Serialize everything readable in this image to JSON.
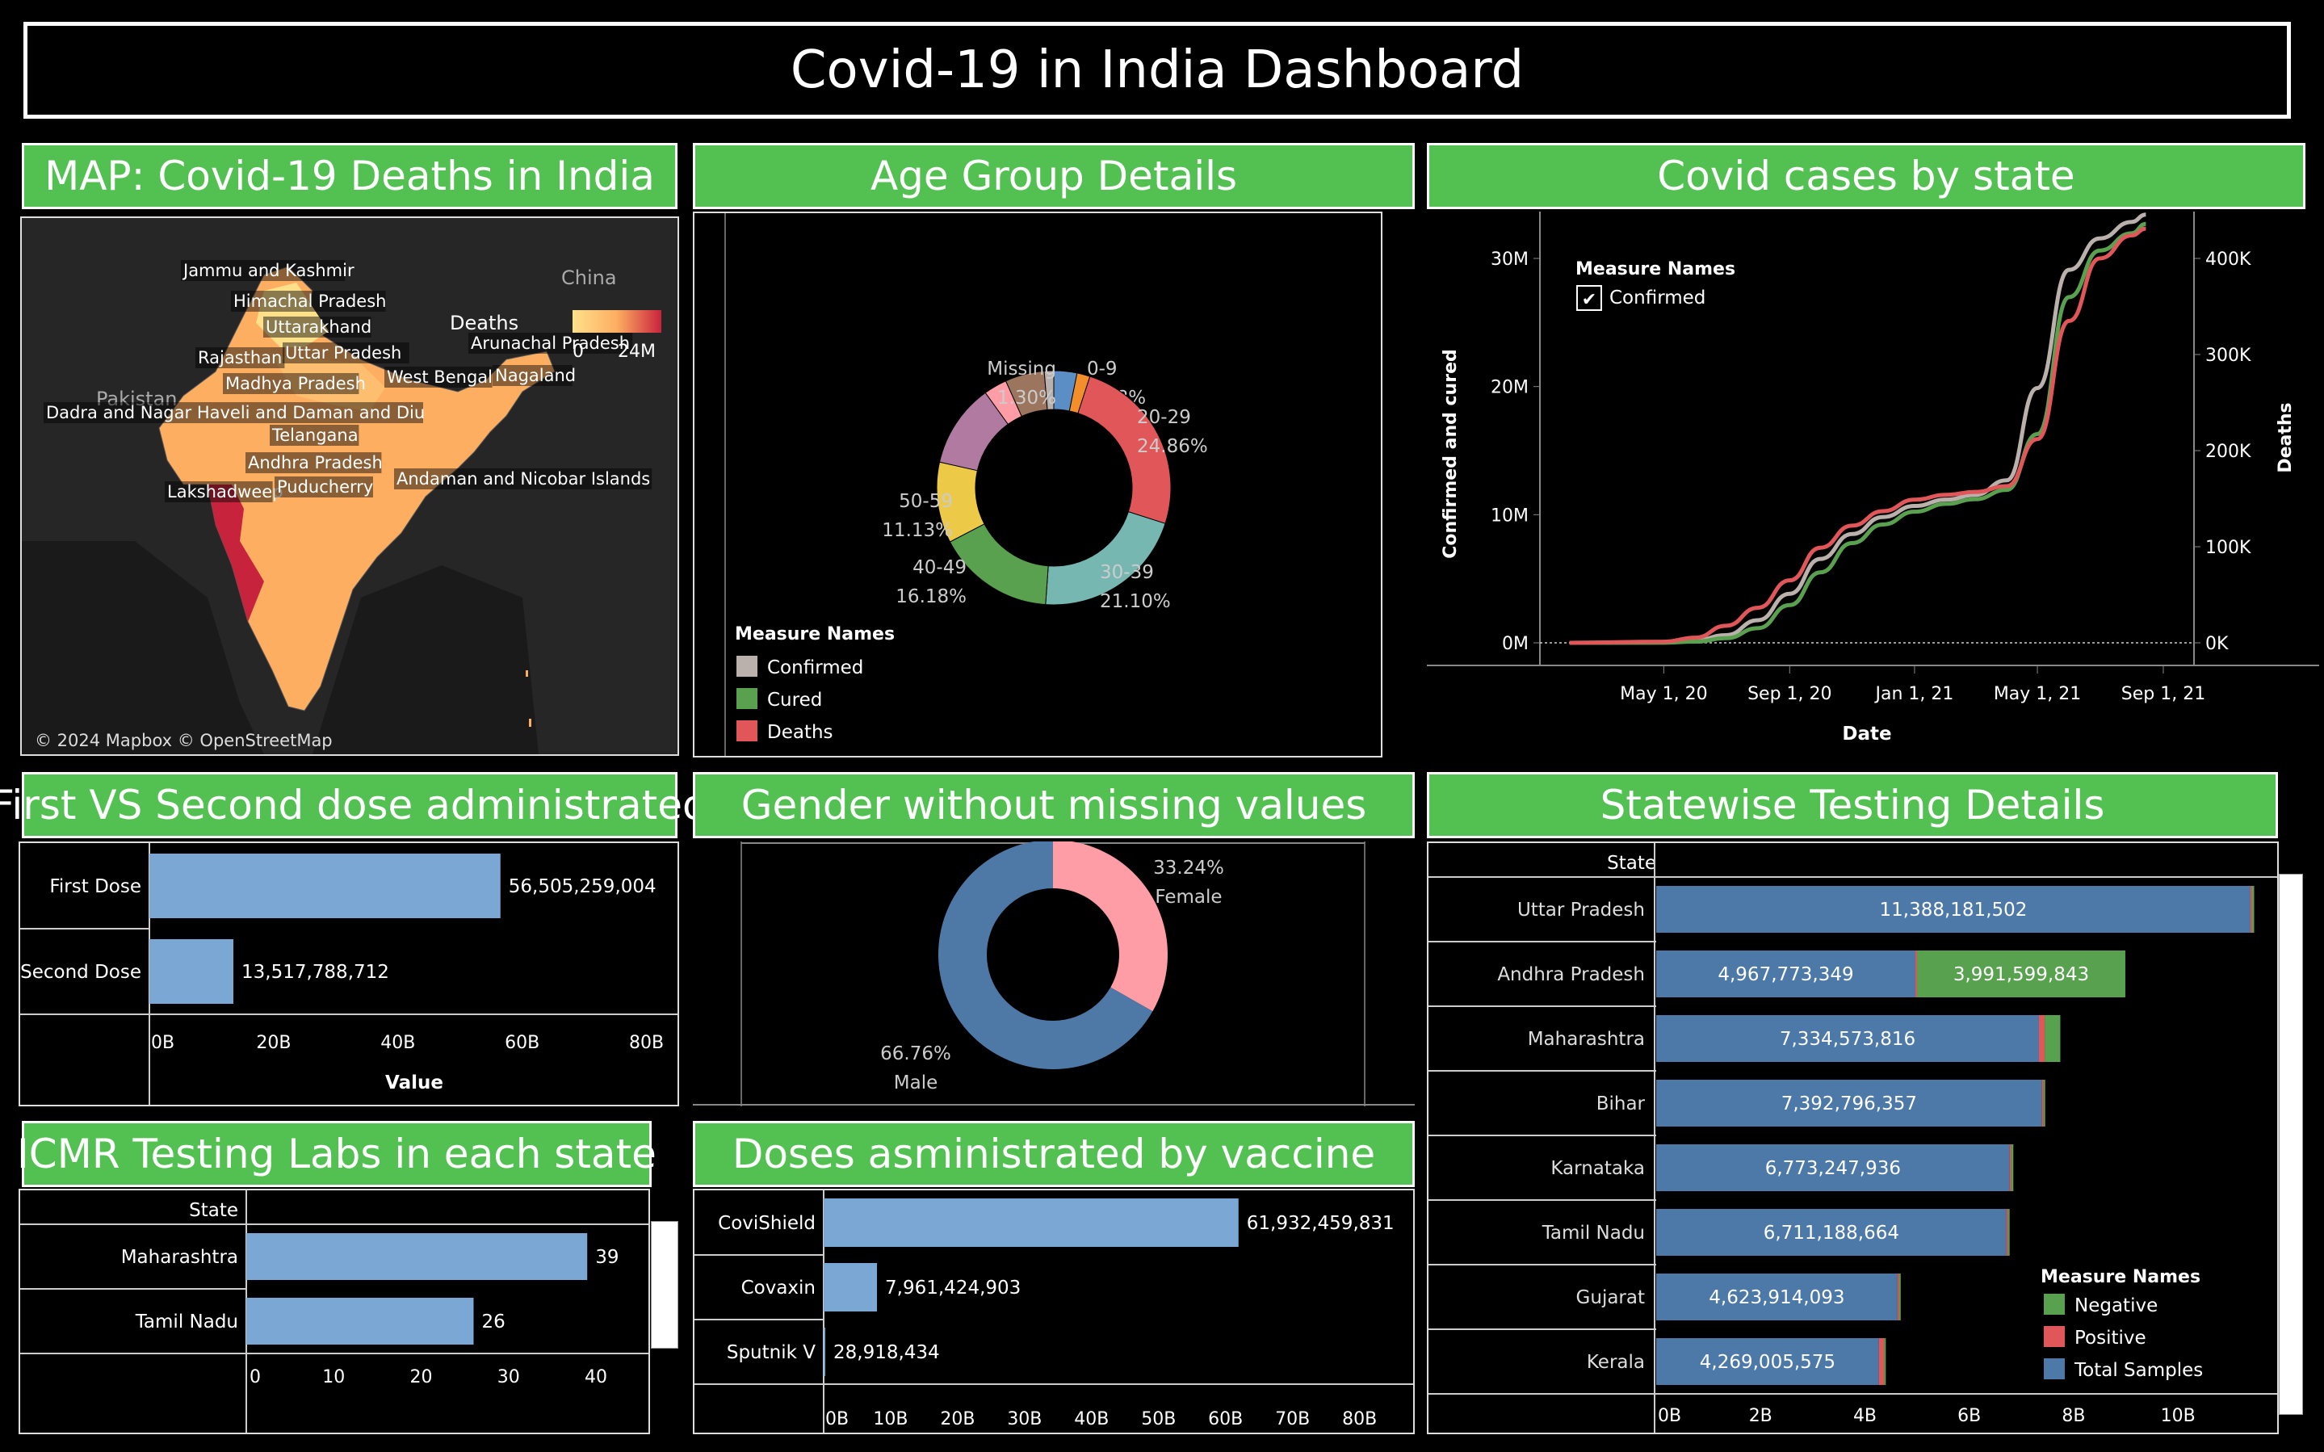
{
  "dashboard_title": "Covid-19 in India Dashboard",
  "colors": {
    "header_green": "#52c152",
    "bar_blue": "#7ba7d4",
    "total_samples": "#4d79a8",
    "negative": "#58a14e",
    "positive": "#e15759"
  },
  "map": {
    "header": "MAP: Covid-19 Deaths in India",
    "legend_title": "Deaths",
    "legend_min": "0",
    "legend_max": "24M",
    "countries": [
      "China",
      "Pakistan"
    ],
    "labels": [
      "Jammu and Kashmir",
      "Himachal Pradesh",
      "Uttarakhand",
      "Rajasthan",
      "Uttar Pradesh",
      "Arunachal Pradesh",
      "Nagaland",
      "Madhya Pradesh",
      "West Bengal",
      "Dadra and Nagar Haveli and Daman and Diu",
      "Telangana",
      "Andhra Pradesh",
      "Lakshadweep",
      "Puducherry",
      "Andaman and Nicobar Islands"
    ],
    "attribution": "© 2024 Mapbox © OpenStreetMap"
  },
  "age": {
    "header": "Age Group Details",
    "legend_title": "Measure Names",
    "legend": [
      "Confirmed",
      "Cured",
      "Deaths"
    ]
  },
  "cases": {
    "header": "Covid cases by state",
    "legend_title": "Measure Names",
    "legend_item": "Confirmed",
    "check": "✔",
    "ylabel_left": "Confirmed and cured",
    "ylabel_right": "Deaths",
    "xlabel": "Date"
  },
  "doses": {
    "header": "First VS Second dose administrated",
    "xlabel": "Value"
  },
  "gender": {
    "header": "Gender without missing values"
  },
  "testing": {
    "header": "Statewise Testing Details",
    "col_header": "State",
    "legend_title": "Measure Names",
    "legend": [
      "Negative",
      "Positive",
      "Total Samples"
    ]
  },
  "icmr": {
    "header": "ICMR Testing Labs in each state",
    "col_header": "State"
  },
  "vaccine": {
    "header": "Doses asministrated by vaccine"
  },
  "chart_data": [
    {
      "type": "pie",
      "title": "Age Group Details",
      "slices": [
        {
          "label": "0-9",
          "pct": "3.18%",
          "value": 3.18,
          "color": "#5b8ec4"
        },
        {
          "label": "",
          "pct": "",
          "value": 1.8,
          "color": "#f28e2b"
        },
        {
          "label": "20-29",
          "pct": "24.86%",
          "value": 24.86,
          "color": "#e15759"
        },
        {
          "label": "30-39",
          "pct": "21.10%",
          "value": 21.1,
          "color": "#76b7b2"
        },
        {
          "label": "40-49",
          "pct": "16.18%",
          "value": 16.18,
          "color": "#59a14f"
        },
        {
          "label": "50-59",
          "pct": "11.13%",
          "value": 11.13,
          "color": "#edc948"
        },
        {
          "label": "",
          "pct": "",
          "value": 11.5,
          "color": "#b07aa1"
        },
        {
          "label": "",
          "pct": "",
          "value": 3.2,
          "color": "#ff9da7"
        },
        {
          "label": "",
          "pct": "",
          "value": 5.4,
          "color": "#9c755f"
        },
        {
          "label": "Missing",
          "pct": "1.30%",
          "value": 1.3,
          "color": "#bab0ac"
        }
      ]
    },
    {
      "type": "line",
      "title": "Covid cases by state",
      "xlabel": "Date",
      "x_ticks": [
        "May 1, 20",
        "Sep 1, 20",
        "Jan 1, 21",
        "May 1, 21",
        "Sep 1, 21"
      ],
      "y_left_ticks": [
        "0M",
        "10M",
        "20M",
        "30M"
      ],
      "y_left_range": [
        0,
        30000000
      ],
      "y_right_ticks": [
        "0K",
        "100K",
        "200K",
        "300K",
        "400K"
      ],
      "y_right_range": [
        0,
        400000
      ],
      "series": [
        {
          "name": "Confirmed",
          "color": "#bab0ac",
          "points": [
            [
              "2020-01-30",
              0
            ],
            [
              "2020-05-01",
              30000
            ],
            [
              "2020-06-01",
              190000
            ],
            [
              "2020-07-01",
              580000
            ],
            [
              "2020-08-01",
              1700000
            ],
            [
              "2020-09-01",
              3690000
            ],
            [
              "2020-10-01",
              6310000
            ],
            [
              "2020-11-01",
              8180000
            ],
            [
              "2020-12-01",
              9460000
            ],
            [
              "2021-01-01",
              10290000
            ],
            [
              "2021-02-01",
              10770000
            ],
            [
              "2021-03-01",
              11120000
            ],
            [
              "2021-04-01",
              12220000
            ],
            [
              "2021-05-01",
              19160000
            ],
            [
              "2021-06-01",
              28050000
            ],
            [
              "2021-07-01",
              30410000
            ],
            [
              "2021-08-01",
              31650000
            ],
            [
              "2021-08-15",
              32200000
            ]
          ]
        },
        {
          "name": "Cured",
          "color": "#59a14f",
          "points": [
            [
              "2020-01-30",
              0
            ],
            [
              "2020-05-01",
              8000
            ],
            [
              "2020-06-01",
              90000
            ],
            [
              "2020-07-01",
              350000
            ],
            [
              "2020-08-01",
              1100000
            ],
            [
              "2020-09-01",
              2840000
            ],
            [
              "2020-10-01",
              5300000
            ],
            [
              "2020-11-01",
              7500000
            ],
            [
              "2020-12-01",
              8900000
            ],
            [
              "2021-01-01",
              9860000
            ],
            [
              "2021-02-01",
              10450000
            ],
            [
              "2021-03-01",
              10800000
            ],
            [
              "2021-04-01",
              11500000
            ],
            [
              "2021-05-01",
              15700000
            ],
            [
              "2021-06-01",
              26000000
            ],
            [
              "2021-07-01",
              29500000
            ],
            [
              "2021-08-01",
              30800000
            ],
            [
              "2021-08-15",
              31500000
            ]
          ]
        },
        {
          "name": "Deaths",
          "color": "#e15759",
          "axis": "right",
          "points": [
            [
              "2020-01-30",
              0
            ],
            [
              "2020-05-01",
              1200
            ],
            [
              "2020-06-01",
              5400
            ],
            [
              "2020-07-01",
              17800
            ],
            [
              "2020-08-01",
              36500
            ],
            [
              "2020-09-01",
              65000
            ],
            [
              "2020-10-01",
              99000
            ],
            [
              "2020-11-01",
              122000
            ],
            [
              "2020-12-01",
              137000
            ],
            [
              "2021-01-01",
              149000
            ],
            [
              "2021-02-01",
              154000
            ],
            [
              "2021-03-01",
              157000
            ],
            [
              "2021-04-01",
              163000
            ],
            [
              "2021-05-01",
              212000
            ],
            [
              "2021-06-01",
              335000
            ],
            [
              "2021-07-01",
              400000
            ],
            [
              "2021-08-01",
              424000
            ],
            [
              "2021-08-15",
              431000
            ]
          ]
        }
      ]
    },
    {
      "type": "bar",
      "title": "First VS Second dose administrated",
      "xlabel": "Value",
      "categories": [
        "First Dose",
        "Second Dose"
      ],
      "values": [
        56505259004,
        13517788712
      ],
      "value_labels": [
        "56,505,259,004",
        "13,517,788,712"
      ],
      "x_ticks": [
        "0B",
        "20B",
        "40B",
        "60B",
        "80B"
      ],
      "xlim": [
        0,
        85000000000
      ]
    },
    {
      "type": "pie",
      "title": "Gender without missing values",
      "slices": [
        {
          "label": "Female",
          "pct": "33.24%",
          "value": 33.24,
          "color": "#ff9da7"
        },
        {
          "label": "Male",
          "pct": "66.76%",
          "value": 66.76,
          "color": "#4e79a7"
        }
      ]
    },
    {
      "type": "bar",
      "title": "Statewise Testing Details",
      "categories": [
        "Uttar Pradesh",
        "Andhra Pradesh",
        "Maharashtra",
        "Bihar",
        "Karnataka",
        "Tamil Nadu",
        "Gujarat",
        "Kerala"
      ],
      "series": [
        {
          "name": "Total Samples",
          "values": [
            11388181502,
            4967773349,
            7334573816,
            7392796357,
            6773247936,
            6711188664,
            4623914093,
            4269005575
          ],
          "labels": [
            "11,388,181,502",
            "4,967,773,349",
            "7,334,573,816",
            "7,392,796,357",
            "6,773,247,936",
            "6,711,188,664",
            "4,623,914,093",
            "4,269,005,575"
          ]
        },
        {
          "name": "Positive",
          "values": [
            20000000,
            20000000,
            110000000,
            10000000,
            25000000,
            20000000,
            10000000,
            100000000
          ]
        },
        {
          "name": "Negative",
          "values": [
            40000000,
            3991599843,
            300000000,
            30000000,
            40000000,
            30000000,
            25000000,
            20000000
          ],
          "labels": [
            "",
            "3,991,599,843",
            "",
            "",
            "",
            "",
            "",
            ""
          ]
        }
      ],
      "x_ticks": [
        "0B",
        "2B",
        "4B",
        "6B",
        "8B",
        "10B"
      ],
      "xlim": [
        0,
        11900000000
      ]
    },
    {
      "type": "bar",
      "title": "ICMR Testing Labs in each state",
      "categories": [
        "Maharashtra",
        "Tamil Nadu"
      ],
      "values": [
        39,
        26
      ],
      "value_labels": [
        "39",
        "26"
      ],
      "x_ticks": [
        "0",
        "10",
        "20",
        "30",
        "40"
      ],
      "xlim": [
        0,
        46
      ]
    },
    {
      "type": "bar",
      "title": "Doses asministrated by vaccine",
      "categories": [
        "CoviShield",
        "Covaxin",
        "Sputnik V"
      ],
      "values": [
        61932459831,
        7961424903,
        28918434
      ],
      "value_labels": [
        "61,932,459,831",
        "7,961,424,903",
        "28,918,434"
      ],
      "x_ticks": [
        "0B",
        "10B",
        "20B",
        "30B",
        "40B",
        "50B",
        "60B",
        "70B",
        "80B"
      ],
      "xlim": [
        0,
        88000000000
      ]
    }
  ]
}
